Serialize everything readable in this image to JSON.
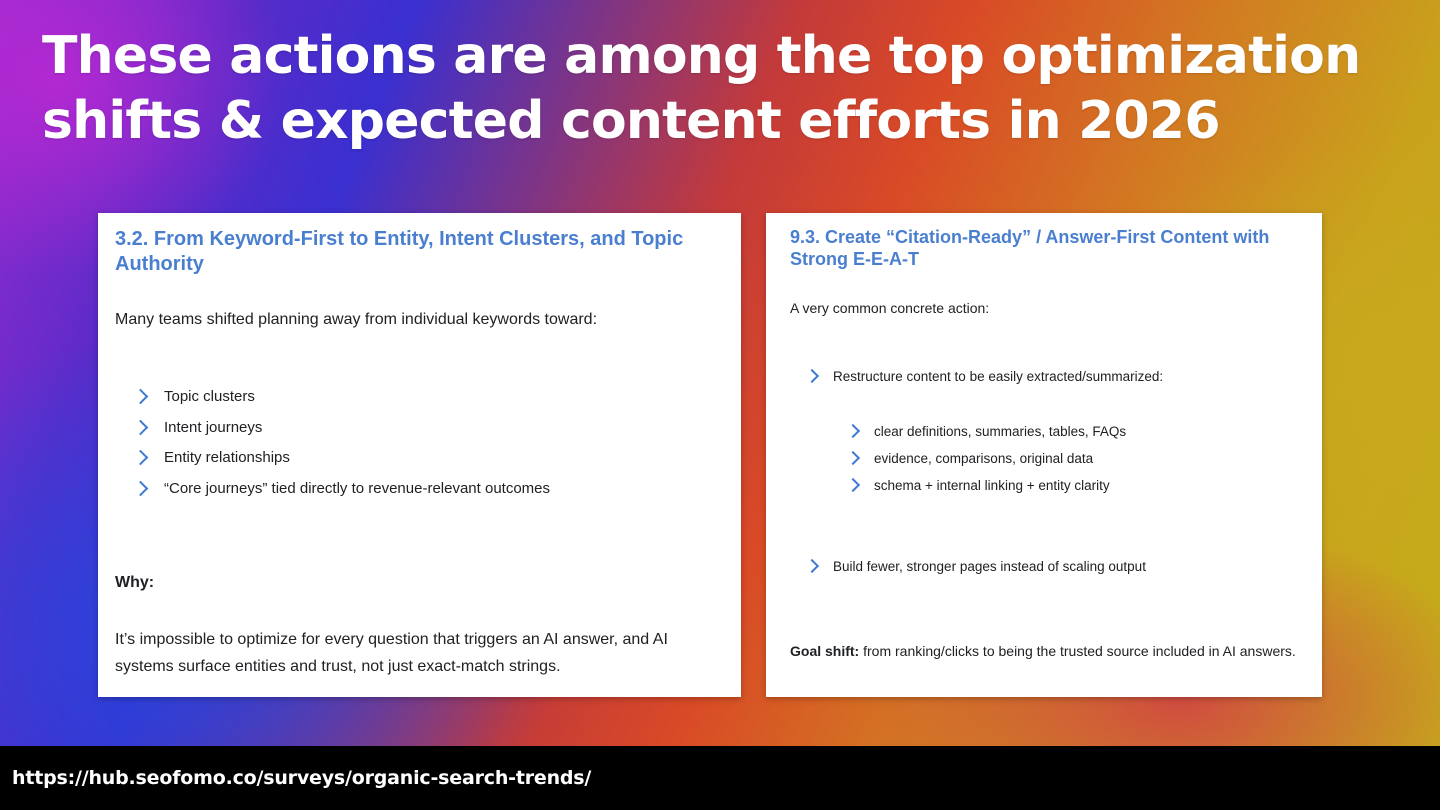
{
  "slide": {
    "title": "These actions are among the top optimization shifts & expected content efforts in 2026",
    "background_colors": [
      "#9a2bd0",
      "#3a2fd0",
      "#d94a26",
      "#c9a21c"
    ]
  },
  "left_card": {
    "heading": "3.2. From Keyword-First to Entity, Intent Clusters, and Topic Authority",
    "intro": "Many teams shifted planning away from individual keywords toward:",
    "items": [
      "Topic clusters",
      "Intent journeys",
      "Entity relationships",
      "“Core journeys” tied directly to revenue-relevant outcomes"
    ],
    "why_label": "Why:",
    "why_text": "It’s impossible to optimize for every question that triggers an AI answer, and AI systems surface entities and trust, not just exact-match strings."
  },
  "right_card": {
    "heading": "9.3. Create “Citation-Ready” / Answer-First Content with Strong E-E-A-T",
    "intro": "A very common concrete action:",
    "item1": "Restructure content to be easily extracted/summarized:",
    "subitems": [
      "clear definitions, summaries, tables, FAQs",
      "evidence, comparisons, original data",
      "schema + internal linking + entity clarity"
    ],
    "item2": "Build fewer, stronger pages instead of scaling output",
    "goal_label": "Goal shift:",
    "goal_text": " from ranking/clicks to being the trusted source included in AI answers."
  },
  "footer": {
    "url": "https://hub.seofomo.co/surveys/organic-search-trends/"
  },
  "colors": {
    "heading_blue": "#4a7fd0",
    "chevron_blue": "#3f79d4",
    "footer_bg": "#000000"
  },
  "icons": {
    "bullet": "chevron-right-icon"
  }
}
